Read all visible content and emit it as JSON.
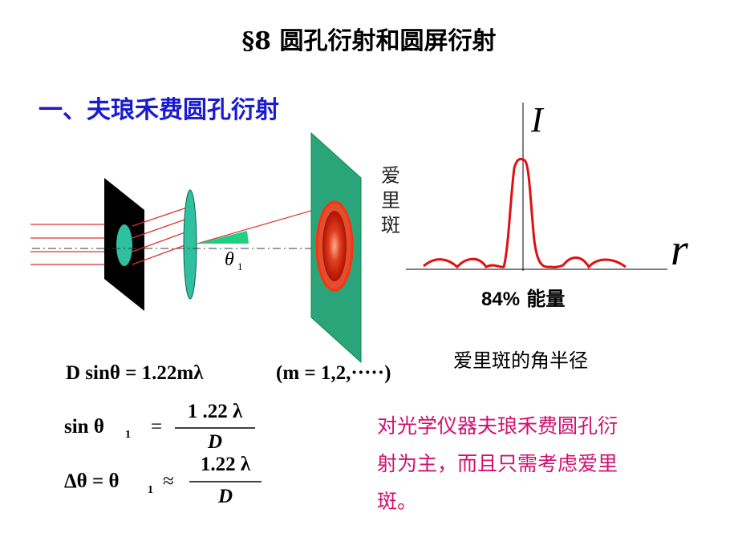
{
  "title": "§8   圆孔衍射和圆屏衍射",
  "heading": "一、夫琅禾费圆孔衍射",
  "diagram": {
    "airy_label": "爱里斑",
    "theta_label": "θ",
    "theta_sub": "1"
  },
  "plot": {
    "y_label": "I",
    "x_label": "r",
    "energy_number": "84%",
    "energy_text": "能量",
    "caption": "爱里斑的角半径"
  },
  "equations": {
    "eq1_lhs": "D sinθ = 1.22mλ",
    "eq1_rhs": "(m = 1,2,·····)",
    "eq2_lhs": "sin  θ",
    "eq2_sub": "1",
    "eq2_num": "1 .22  λ",
    "eq2_den": "D",
    "eq3_lhs": "Δθ = θ",
    "eq3_sub": "1",
    "eq3_approx": "≈",
    "eq3_num": "1.22 λ",
    "eq3_den": "D"
  },
  "note": "对光学仪器夫琅禾费圆孔衍射为主，而且只需考虑爱里斑。",
  "colors": {
    "heading": "#1a1ad0",
    "note": "#d01070",
    "curve": "#e01010",
    "screen": "#2aa57a",
    "lens": "#2fc0a0"
  }
}
